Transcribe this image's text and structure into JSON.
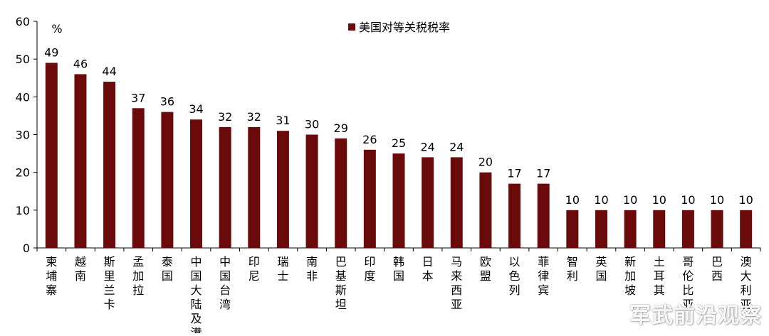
{
  "chart_data": {
    "type": "bar",
    "unit_label": "%",
    "legend_position": "top-center",
    "grid": false,
    "ylim": [
      0,
      60
    ],
    "yticks": [
      0,
      10,
      20,
      30,
      40,
      50,
      60
    ],
    "categories": [
      "柬埔寨",
      "越南",
      "斯里兰卡",
      "孟加拉",
      "泰国",
      "中国大陆及港",
      "中国台湾",
      "印尼",
      "瑞士",
      "南非",
      "巴基斯坦",
      "印度",
      "韩国",
      "日本",
      "马来西亚",
      "欧盟",
      "以色列",
      "菲律宾",
      "智利",
      "英国",
      "新加坡",
      "土耳其",
      "哥伦比亚",
      "巴西",
      "澳大利亚"
    ],
    "series": [
      {
        "name": "美国对等关税税率",
        "color": "#6b0a0a",
        "values": [
          49,
          46,
          44,
          37,
          36,
          34,
          32,
          32,
          31,
          30,
          29,
          26,
          25,
          24,
          24,
          20,
          17,
          17,
          10,
          10,
          10,
          10,
          10,
          10,
          10
        ]
      }
    ]
  },
  "watermark": "军武前沿观察"
}
